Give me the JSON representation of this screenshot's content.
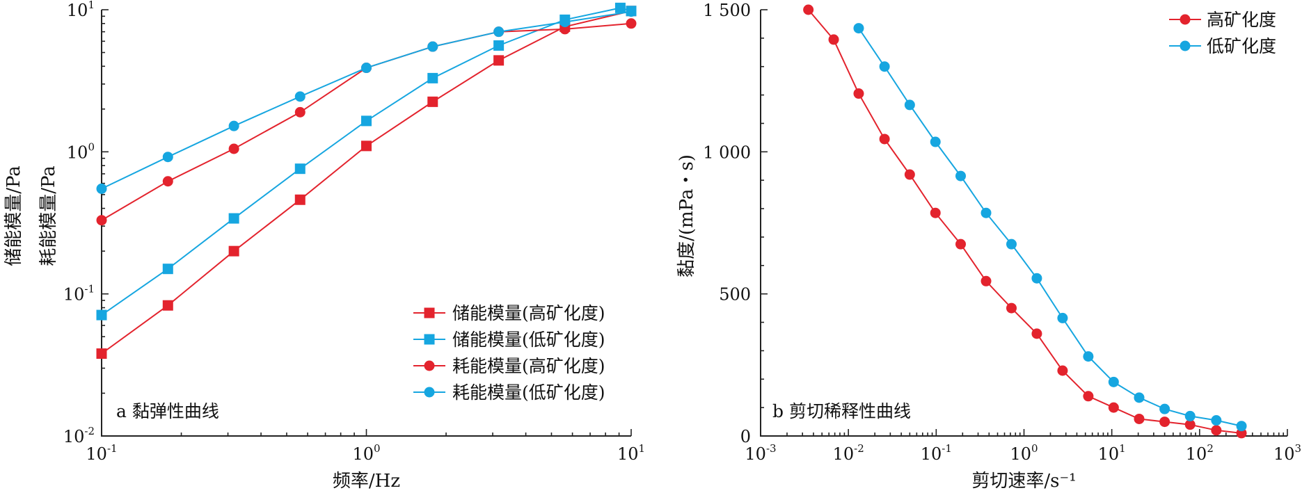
{
  "chart_data": [
    {
      "type": "line",
      "panel_label": "a 黏弹性曲线",
      "xlabel": "频率/Hz",
      "ylabel": [
        "储能模量/Pa",
        "耗能模量/Pa"
      ],
      "xscale": "log",
      "yscale": "log",
      "xlim": [
        0.1,
        10
      ],
      "ylim": [
        0.01,
        10
      ],
      "x_ticks": [
        {
          "base": "10",
          "exp": "-1",
          "value": 0.1
        },
        {
          "base": "10",
          "exp": "0",
          "value": 1
        },
        {
          "base": "10",
          "exp": "1",
          "value": 10
        }
      ],
      "y_ticks": [
        {
          "base": "10",
          "exp": "-2",
          "value": 0.01
        },
        {
          "base": "10",
          "exp": "-1",
          "value": 0.1
        },
        {
          "base": "10",
          "exp": "0",
          "value": 1
        },
        {
          "base": "10",
          "exp": "1",
          "value": 10
        }
      ],
      "legend_position": "bottom-right",
      "grid": false,
      "series": [
        {
          "name": "储能模量(高矿化度)",
          "color": "#e3232d",
          "marker": "square",
          "x": [
            0.1,
            0.178,
            0.316,
            0.562,
            1.0,
            1.78,
            3.16,
            5.62,
            10
          ],
          "y": [
            0.038,
            0.083,
            0.2,
            0.46,
            1.1,
            2.25,
            4.4,
            7.6,
            9.8
          ]
        },
        {
          "name": "储能模量(低矿化度)",
          "color": "#16a6e0",
          "marker": "square",
          "x": [
            0.1,
            0.178,
            0.316,
            0.562,
            1.0,
            1.78,
            3.16,
            5.62,
            9.1,
            10
          ],
          "y": [
            0.071,
            0.15,
            0.34,
            0.76,
            1.65,
            3.3,
            5.6,
            8.5,
            10.3,
            9.8
          ]
        },
        {
          "name": "耗能模量(高矿化度)",
          "color": "#e3232d",
          "marker": "circle",
          "x": [
            0.1,
            0.178,
            0.316,
            0.562,
            1.0,
            1.78,
            3.16,
            5.62,
            10
          ],
          "y": [
            0.33,
            0.62,
            1.05,
            1.9,
            3.9,
            5.5,
            7.0,
            7.3,
            8.0
          ]
        },
        {
          "name": "耗能模量(低矿化度)",
          "color": "#16a6e0",
          "marker": "circle",
          "x": [
            0.1,
            0.178,
            0.316,
            0.562,
            1.0,
            1.78,
            3.16,
            5.62,
            10
          ],
          "y": [
            0.55,
            0.92,
            1.52,
            2.45,
            3.9,
            5.5,
            7.0,
            8.2,
            9.7
          ]
        }
      ]
    },
    {
      "type": "line",
      "panel_label": "b 剪切稀释性曲线",
      "xlabel": "剪切速率/s⁻¹",
      "ylabel": "黏度/(mPa・s)",
      "xscale": "log",
      "yscale": "linear",
      "xlim": [
        0.001,
        1000
      ],
      "ylim": [
        0,
        1500
      ],
      "x_ticks": [
        {
          "base": "10",
          "exp": "-3",
          "value": 0.001
        },
        {
          "base": "10",
          "exp": "-2",
          "value": 0.01
        },
        {
          "base": "10",
          "exp": "-1",
          "value": 0.1
        },
        {
          "base": "10",
          "exp": "0",
          "value": 1
        },
        {
          "base": "10",
          "exp": "1",
          "value": 10
        },
        {
          "base": "10",
          "exp": "2",
          "value": 100
        },
        {
          "base": "10",
          "exp": "3",
          "value": 1000
        }
      ],
      "y_ticks": [
        {
          "label": "0",
          "value": 0
        },
        {
          "label": "500",
          "value": 500
        },
        {
          "label": "1 000",
          "value": 1000
        },
        {
          "label": "1 500",
          "value": 1500
        }
      ],
      "legend_position": "top-right",
      "grid": false,
      "series": [
        {
          "name": "高矿化度",
          "color": "#e3232d",
          "marker": "circle",
          "x": [
            0.0035,
            0.0068,
            0.0131,
            0.0258,
            0.05,
            0.098,
            0.19,
            0.37,
            0.72,
            1.4,
            2.75,
            5.4,
            10.5,
            20.5,
            40,
            78,
            155,
            300
          ],
          "y": [
            1500,
            1395,
            1205,
            1045,
            920,
            785,
            675,
            545,
            450,
            360,
            230,
            140,
            100,
            60,
            50,
            40,
            20,
            10
          ]
        },
        {
          "name": "低矿化度",
          "color": "#16a6e0",
          "marker": "circle",
          "x": [
            0.0131,
            0.0258,
            0.05,
            0.098,
            0.19,
            0.37,
            0.72,
            1.4,
            2.75,
            5.4,
            10.5,
            20.5,
            40,
            78,
            155,
            300
          ],
          "y": [
            1435,
            1300,
            1165,
            1035,
            915,
            785,
            675,
            555,
            415,
            280,
            190,
            135,
            95,
            70,
            55,
            35
          ]
        }
      ]
    }
  ]
}
